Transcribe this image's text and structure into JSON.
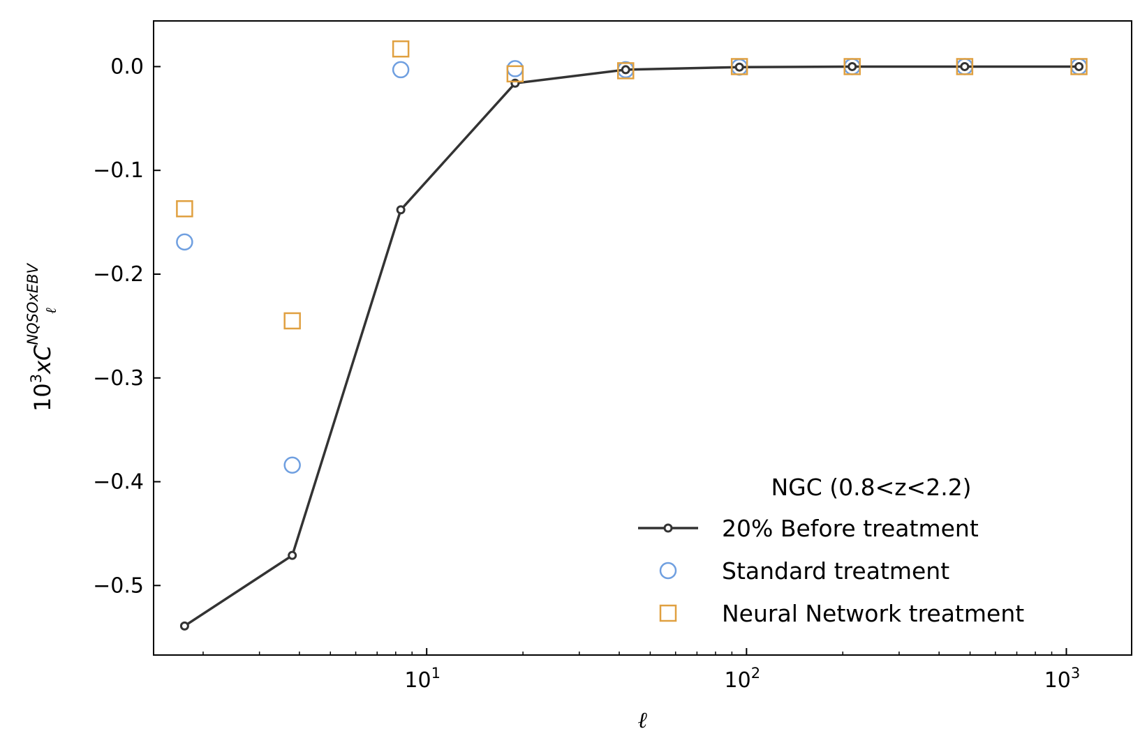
{
  "chart_data": {
    "type": "line",
    "x_scale": "log",
    "xlim": [
      1.4,
      1600
    ],
    "ylim": [
      -0.567,
      0.044
    ],
    "xlabel": "ℓ",
    "ylabel_main": "10",
    "ylabel_exp": "3",
    "ylabel_mid": "xC",
    "ylabel_sup": "NQSOxEBV",
    "ylabel_sub": "ℓ",
    "x_ticks": [
      {
        "value": 10,
        "base": "10",
        "exp": "1"
      },
      {
        "value": 100,
        "base": "10",
        "exp": "2"
      },
      {
        "value": 1000,
        "base": "10",
        "exp": "3"
      }
    ],
    "y_ticks": [
      {
        "value": 0.0,
        "label": "0.0"
      },
      {
        "value": -0.1,
        "label": "−0.1"
      },
      {
        "value": -0.2,
        "label": "−0.2"
      },
      {
        "value": -0.3,
        "label": "−0.3"
      },
      {
        "value": -0.4,
        "label": "−0.4"
      },
      {
        "value": -0.5,
        "label": "−0.5"
      }
    ],
    "grid": false,
    "legend": {
      "position": "lower-right",
      "title": "NGC (0.8<z<2.2)"
    },
    "series": [
      {
        "name": "20% Before treatment",
        "style": "line-marker",
        "color": "#333333",
        "x": [
          1.75,
          3.8,
          8.3,
          18.9,
          41.9,
          95.0,
          214.0,
          481.0,
          1095.0
        ],
        "y": [
          -0.539,
          -0.471,
          -0.138,
          -0.016,
          -0.003,
          -0.0005,
          0.0,
          0.0,
          0.0
        ]
      },
      {
        "name": "Standard treatment",
        "style": "circle",
        "color": "#6f9fe0",
        "x": [
          1.75,
          3.8,
          8.3,
          18.9,
          41.9,
          95.0,
          214.0,
          481.0,
          1095.0
        ],
        "y": [
          -0.169,
          -0.384,
          -0.003,
          -0.002,
          -0.003,
          -0.0005,
          0.0,
          0.0,
          0.0
        ]
      },
      {
        "name": "Neural Network treatment",
        "style": "square",
        "color": "#e0a040",
        "x": [
          1.75,
          3.8,
          8.3,
          18.9,
          41.9,
          95.0,
          214.0,
          481.0,
          1095.0
        ],
        "y": [
          -0.137,
          -0.245,
          0.017,
          -0.007,
          -0.004,
          0.0,
          0.0,
          0.0,
          0.0
        ]
      }
    ]
  }
}
